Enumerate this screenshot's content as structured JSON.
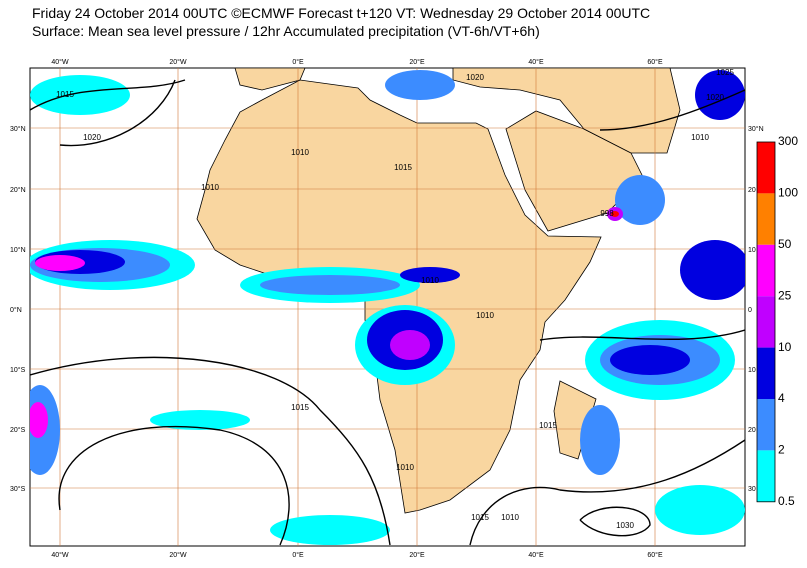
{
  "header": {
    "line1": "Friday 24 October 2014 00UTC ©ECMWF Forecast t+120 VT: Wednesday 29 October 2014 00UTC",
    "line2": "Surface: Mean sea level pressure / 12hr Accumulated precipitation (VT-6h/VT+6h)"
  },
  "map": {
    "lon_labels": [
      "40°W",
      "20°W",
      "0°E",
      "20°E",
      "40°E",
      "60°E"
    ],
    "lat_labels": [
      "30°N",
      "20°N",
      "10°N",
      "0°N",
      "10°S",
      "20°S",
      "30°S"
    ],
    "lat_labels_right": [
      "30°N",
      "20",
      "10",
      "0",
      "10",
      "20",
      "30"
    ],
    "isobar_labels": [
      "1015",
      "1020",
      "1010",
      "1015",
      "1010",
      "1010",
      "1010",
      "1015",
      "1010",
      "1015",
      "1010",
      "1020",
      "1025",
      "1030",
      "1020",
      "998",
      "1015",
      "1010"
    ]
  },
  "colorbar": {
    "labels": [
      "300",
      "100",
      "50",
      "25",
      "10",
      "4",
      "2",
      "0.5"
    ]
  }
}
